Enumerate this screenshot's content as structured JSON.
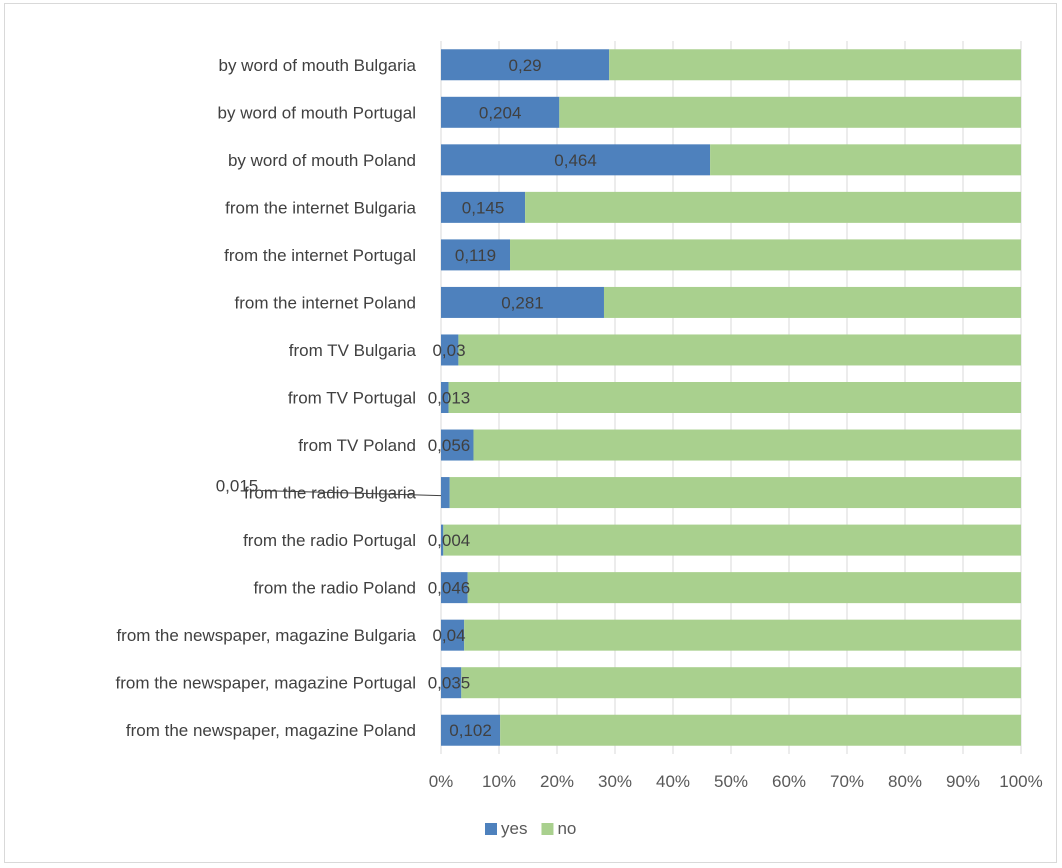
{
  "chart_data": {
    "type": "bar",
    "orientation": "horizontal",
    "stacked": "percent",
    "categories": [
      "by word of mouth Bulgaria",
      "by word of mouth Portugal",
      "by word of mouth Poland",
      "from the internet Bulgaria",
      "from the internet Portugal",
      "from the internet Poland",
      "from TV Bulgaria",
      "from TV Portugal",
      "from TV Poland",
      "from the radio Bulgaria",
      "from the radio Portugal",
      "from the radio Poland",
      "from the newspaper, magazine Bulgaria",
      "from the newspaper, magazine Portugal",
      "from the newspaper, magazine Poland"
    ],
    "series": [
      {
        "name": "yes",
        "color": "#4e81bd",
        "values": [
          0.29,
          0.204,
          0.464,
          0.145,
          0.119,
          0.281,
          0.03,
          0.013,
          0.056,
          0.015,
          0.004,
          0.046,
          0.04,
          0.035,
          0.102
        ],
        "labels": [
          "0,29",
          "0,204",
          "0,464",
          "0,145",
          "0,119",
          "0,281",
          "0,03",
          "0,013",
          "0,056",
          "0,015",
          "0,004",
          "0,046",
          "0,04",
          "0,035",
          "0,102"
        ]
      },
      {
        "name": "no",
        "color": "#a9d08e",
        "values": [
          0.71,
          0.796,
          0.536,
          0.855,
          0.881,
          0.719,
          0.97,
          0.987,
          0.944,
          0.985,
          0.996,
          0.954,
          0.96,
          0.965,
          0.898
        ]
      }
    ],
    "x_ticks": [
      "0%",
      "10%",
      "20%",
      "30%",
      "40%",
      "50%",
      "60%",
      "70%",
      "80%",
      "90%",
      "100%"
    ],
    "xlim": [
      0,
      1
    ],
    "grid": true,
    "legend": "bottom",
    "title": "",
    "xlabel": "",
    "ylabel": ""
  }
}
